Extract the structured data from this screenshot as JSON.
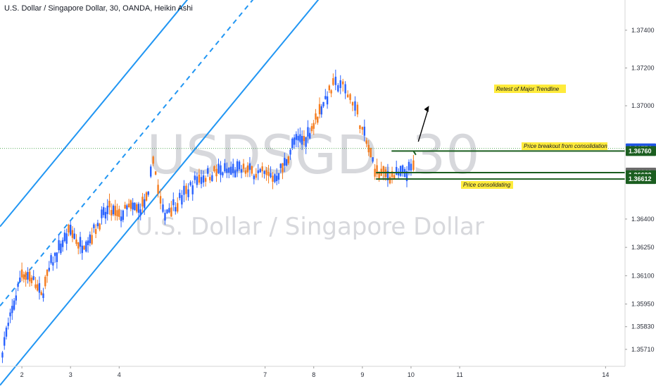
{
  "chart_data": {
    "type": "candlestick",
    "title": "U.S. Dollar / Singapore Dollar, 30, OANDA, Heikin Ashi",
    "watermark": {
      "symbol": "USDSGD, 30",
      "name": "U.S. Dollar / Singapore Dollar"
    },
    "x_ticks": [
      "2",
      "3",
      "4",
      "7",
      "8",
      "9",
      "10",
      "11",
      "14"
    ],
    "y_ticks": [
      1.3571,
      1.3583,
      1.3595,
      1.361,
      1.3625,
      1.364,
      1.37,
      1.372,
      1.374
    ],
    "ylim": [
      1.3562,
      1.3756
    ],
    "xlim": [
      1.55,
      14.4
    ],
    "colors": {
      "up": "#2962ff",
      "down": "#f57c1f",
      "channel": "#2196f3",
      "level": "#1b5e20",
      "annotation_bg": "#ffeb3b"
    },
    "series": [
      {
        "values": [
          [
            1.6,
            1.3571
          ],
          [
            1.8,
            1.3591
          ],
          [
            2.0,
            1.3612
          ],
          [
            2.2,
            1.3609
          ],
          [
            2.4,
            1.3599
          ],
          [
            2.6,
            1.3616
          ],
          [
            2.8,
            1.3626
          ],
          [
            3.0,
            1.3634
          ],
          [
            3.2,
            1.3626
          ],
          [
            3.4,
            1.363
          ],
          [
            3.6,
            1.3639
          ],
          [
            3.8,
            1.3645
          ],
          [
            4.0,
            1.3641
          ],
          [
            4.2,
            1.3646
          ],
          [
            4.4,
            1.3645
          ],
          [
            4.6,
            1.3651
          ],
          [
            4.7,
            1.3674
          ],
          [
            4.8,
            1.3655
          ],
          [
            4.9,
            1.3643
          ],
          [
            5.2,
            1.3649
          ],
          [
            5.6,
            1.3661
          ],
          [
            6.0,
            1.3665
          ],
          [
            6.6,
            1.3666
          ],
          [
            7.2,
            1.3662
          ],
          [
            7.4,
            1.3669
          ],
          [
            7.6,
            1.3681
          ],
          [
            7.8,
            1.3682
          ],
          [
            8.0,
            1.369
          ],
          [
            8.2,
            1.3702
          ],
          [
            8.4,
            1.371
          ],
          [
            8.55,
            1.3712
          ],
          [
            8.7,
            1.3706
          ],
          [
            8.8,
            1.3703
          ],
          [
            8.9,
            1.3696
          ],
          [
            9.0,
            1.3687
          ],
          [
            9.3,
            1.3664
          ],
          [
            9.7,
            1.3663
          ],
          [
            10.0,
            1.3666
          ],
          [
            10.1,
            1.367
          ]
        ]
      }
    ],
    "channel": {
      "upper": [
        [
          1.55,
          1.3636
        ],
        [
          7.0,
          1.3806
        ]
      ],
      "middle": [
        [
          1.55,
          1.3594
        ],
        [
          7.0,
          1.3764
        ]
      ],
      "lower": [
        [
          1.55,
          1.3552
        ],
        [
          7.0,
          1.3722
        ]
      ]
    },
    "price_labels": [
      {
        "value": "1.36774",
        "y": 1.36774,
        "style": "blue"
      },
      {
        "value": "1.36760",
        "y": 1.3676,
        "style": "green"
      },
      {
        "value": "1.36646",
        "y": 1.36646,
        "style": "gray"
      },
      {
        "value": "1.36632",
        "y": 1.36632,
        "style": "green"
      },
      {
        "value": "1.36612",
        "y": 1.36612,
        "style": "green"
      }
    ],
    "annotations": [
      {
        "text": "Retest of Major Trendline"
      },
      {
        "text": "Price breakout from consolidation"
      },
      {
        "text": "Price consolidating"
      }
    ]
  }
}
